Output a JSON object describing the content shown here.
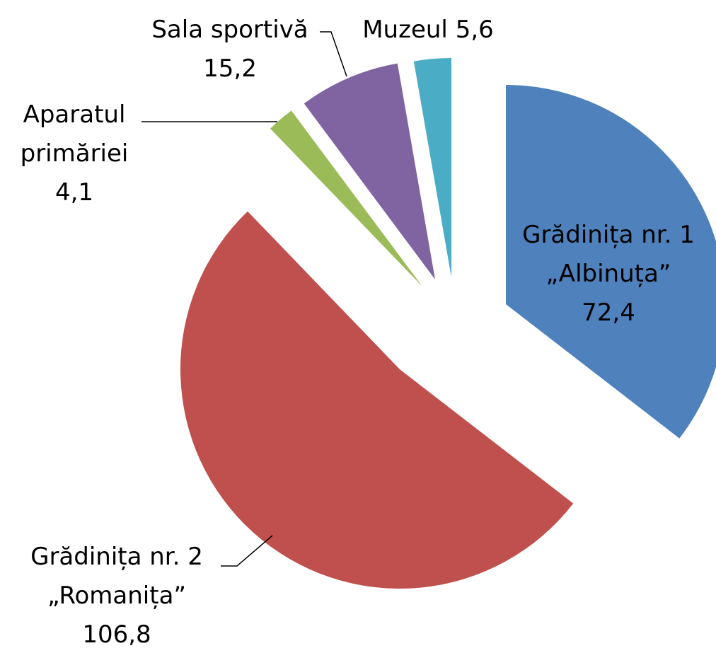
{
  "chart_data": {
    "type": "pie",
    "categories": [
      "Grădinița nr. 1 „Albinuța”",
      "Grădinița nr. 2 „Romanița”",
      "Aparatul primăriei",
      "Sala sportivă",
      "Muzeul"
    ],
    "values": [
      72.4,
      106.8,
      4.1,
      15.2,
      5.6
    ],
    "value_labels": [
      "72,4",
      "106,8",
      "4,1",
      "15,2",
      "5,6"
    ],
    "colors": [
      "#4f81bd",
      "#c0504d",
      "#9bbb59",
      "#8064a2",
      "#4bacc6"
    ]
  }
}
